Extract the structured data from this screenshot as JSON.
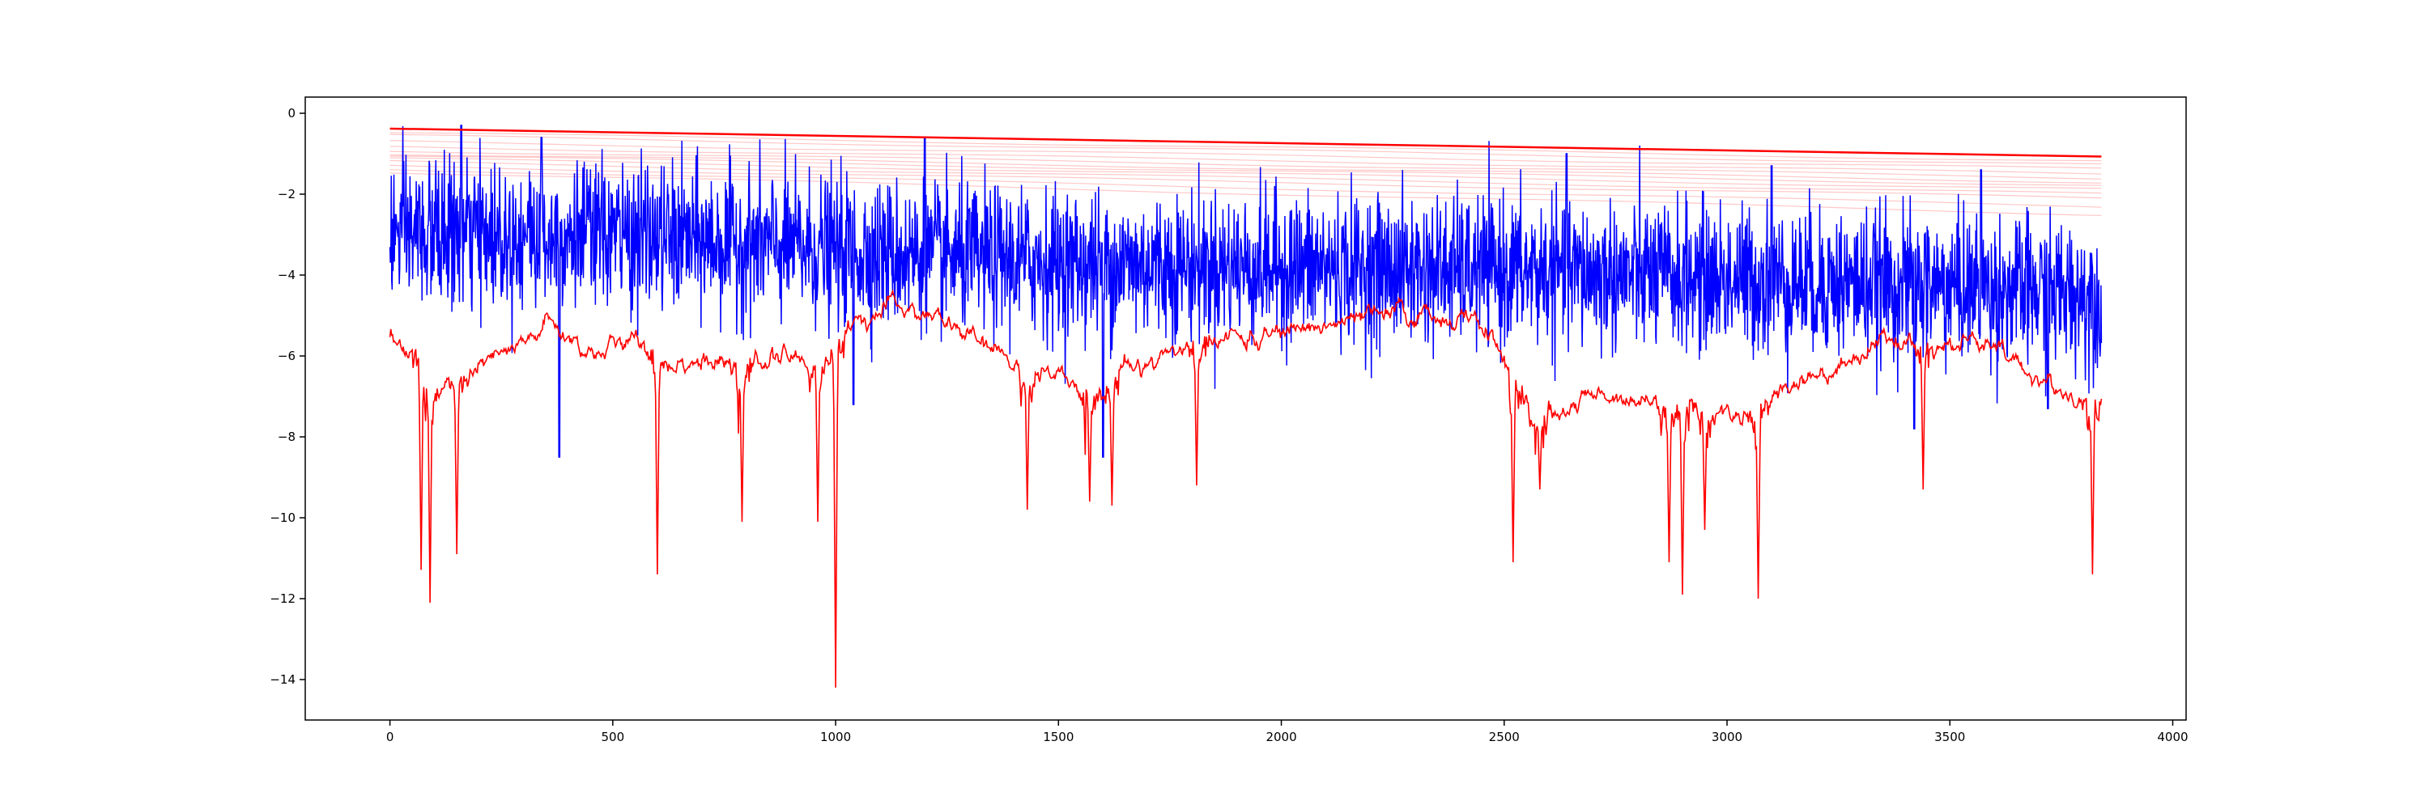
{
  "chart_data": {
    "type": "line",
    "title": "",
    "xlabel": "",
    "ylabel": "",
    "xlim": [
      -190,
      4030
    ],
    "ylim": [
      -15,
      0.4
    ],
    "x_ticks": [
      0,
      500,
      1000,
      1500,
      2000,
      2500,
      3000,
      3500,
      4000
    ],
    "x_tick_labels": [
      "0",
      "500",
      "1000",
      "1500",
      "2000",
      "2500",
      "3000",
      "3500",
      "4000"
    ],
    "y_ticks": [
      0,
      -2,
      -4,
      -6,
      -8,
      -10,
      -12,
      -14
    ],
    "y_tick_labels": [
      "0",
      "−2",
      "−4",
      "−6",
      "−8",
      "−10",
      "−12",
      "−14"
    ],
    "grid": false,
    "legend": "none",
    "series": [
      {
        "color": "#ff0000",
        "opacity": 1,
        "role": "decaying-threshold-bold",
        "x": [
          0,
          3840
        ],
        "y": [
          -0.38,
          -1.07
        ]
      },
      {
        "color": "#ff0000",
        "opacity": 0.22,
        "role": "decaying-threshold-faint",
        "start_x": 0,
        "end_x": 3840,
        "start_y": [
          -0.48,
          -0.55,
          -0.7,
          -0.82,
          -0.92,
          -1.0,
          -1.05,
          -1.12,
          -1.2,
          -1.3,
          -1.38,
          -1.45
        ],
        "end_y": [
          -1.18,
          -1.28,
          -1.38,
          -1.5,
          -1.6,
          -1.7,
          -1.78,
          -1.88,
          -2.0,
          -2.1,
          -2.3,
          -2.5
        ]
      },
      {
        "color": "#0000ff",
        "role": "noisy-signal",
        "x_start": 0,
        "x_end": 3840,
        "n_points": 3841,
        "mean_trend_x": [
          0,
          500,
          1000,
          1500,
          2000,
          2500,
          3000,
          3500,
          3840
        ],
        "mean_trend_y": [
          -3.0,
          -3.0,
          -3.4,
          -3.7,
          -3.8,
          -3.9,
          -4.1,
          -4.3,
          -4.5
        ],
        "spread": 1.2,
        "peaks": [
          [
            160,
            -0.3
          ],
          [
            340,
            -0.6
          ],
          [
            1200,
            -0.6
          ],
          [
            2640,
            -1.0
          ],
          [
            3100,
            -1.3
          ],
          [
            3570,
            -1.4
          ]
        ],
        "troughs": [
          [
            380,
            -8.5
          ],
          [
            1040,
            -7.2
          ],
          [
            1600,
            -8.5
          ],
          [
            3420,
            -7.8
          ],
          [
            3720,
            -7.3
          ]
        ]
      },
      {
        "color": "#ff0000",
        "role": "smooth-lower-envelope",
        "baseline_x": [
          0,
          60,
          100,
          200,
          300,
          350,
          450,
          550,
          650,
          750,
          850,
          950,
          1050,
          1150,
          1250,
          1350,
          1450,
          1550,
          1650,
          1750,
          1850,
          1950,
          2050,
          2150,
          2250,
          2350,
          2450,
          2500,
          2560,
          2650,
          2750,
          2850,
          2950,
          3050,
          3150,
          3250,
          3350,
          3450,
          3550,
          3650,
          3750,
          3840
        ],
        "baseline_y": [
          -5.6,
          -5.9,
          -6.7,
          -6.3,
          -5.8,
          -5.2,
          -5.9,
          -5.7,
          -6.0,
          -6.3,
          -6.0,
          -6.2,
          -5.1,
          -4.8,
          -5.2,
          -5.9,
          -6.4,
          -6.9,
          -6.4,
          -5.9,
          -5.5,
          -5.6,
          -5.3,
          -5.2,
          -5.0,
          -5.0,
          -5.2,
          -6.0,
          -7.6,
          -7.2,
          -6.9,
          -7.1,
          -7.3,
          -7.5,
          -6.6,
          -6.3,
          -5.5,
          -5.7,
          -5.6,
          -6.2,
          -6.9,
          -7.0
        ],
        "dips": [
          [
            70,
            -11.2
          ],
          [
            90,
            -12.1
          ],
          [
            150,
            -10.9
          ],
          [
            600,
            -11.4
          ],
          [
            790,
            -10.1
          ],
          [
            960,
            -10.1
          ],
          [
            1000,
            -14.2
          ],
          [
            1430,
            -9.8
          ],
          [
            1570,
            -9.6
          ],
          [
            1620,
            -9.7
          ],
          [
            1810,
            -9.2
          ],
          [
            2520,
            -11.1
          ],
          [
            2580,
            -9.3
          ],
          [
            2870,
            -11.1
          ],
          [
            2900,
            -11.9
          ],
          [
            2950,
            -10.3
          ],
          [
            3070,
            -12.0
          ],
          [
            3440,
            -9.3
          ],
          [
            3820,
            -11.4
          ]
        ]
      }
    ]
  }
}
